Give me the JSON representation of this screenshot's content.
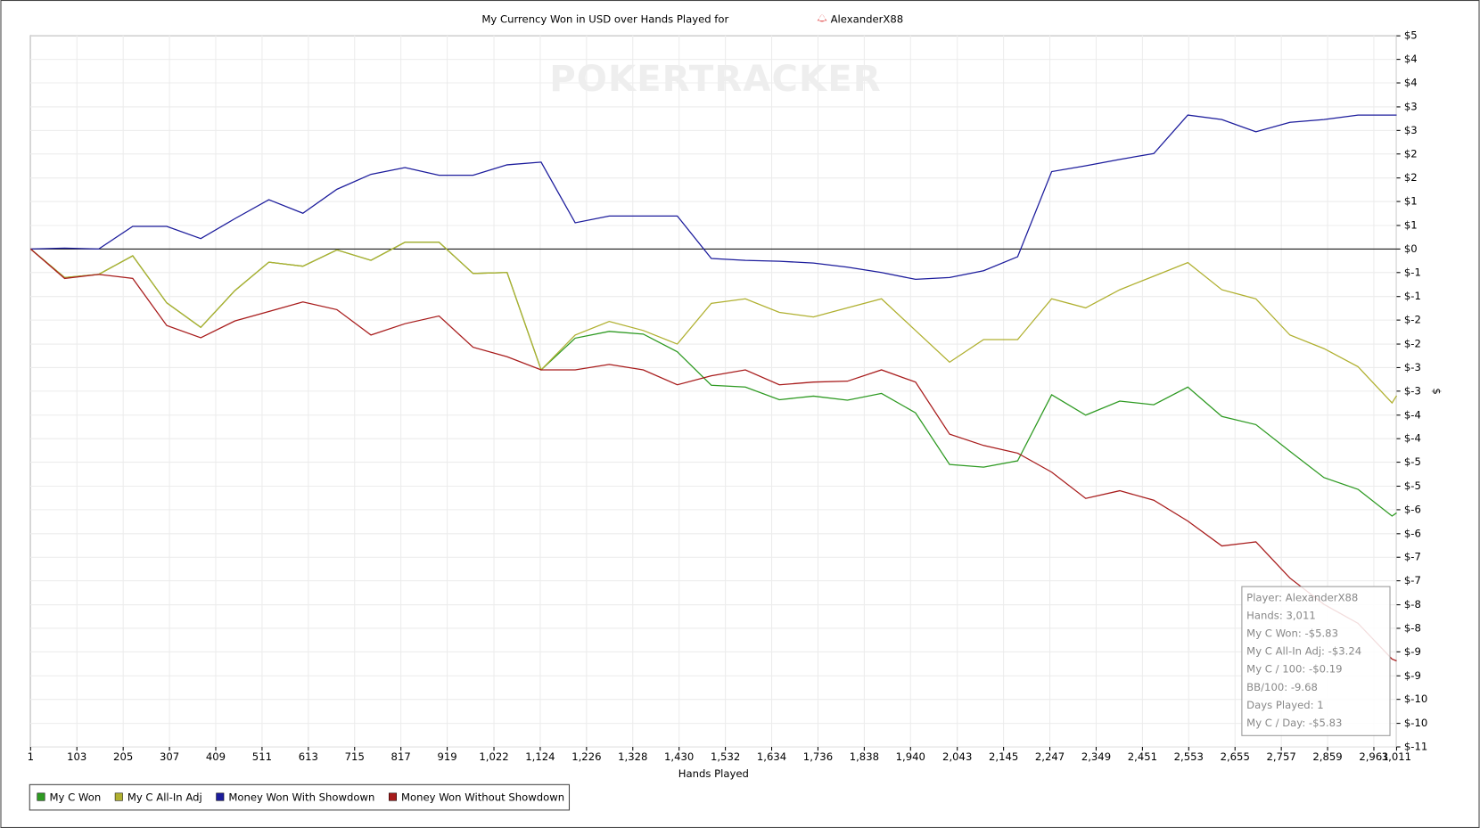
{
  "chart_data": {
    "type": "line",
    "title": "My Currency Won in USD over Hands Played for",
    "player": "AlexanderX88",
    "watermark": "POKERTRACKER",
    "x_label": "Hands Played",
    "y_label": "$",
    "grid": true,
    "legend": "bottom-left",
    "x": [
      1,
      76,
      151,
      226,
      301,
      376,
      451,
      526,
      601,
      676,
      751,
      826,
      901,
      976,
      1051,
      1126,
      1201,
      1276,
      1351,
      1426,
      1501,
      1576,
      1651,
      1726,
      1801,
      1876,
      1951,
      2026,
      2101,
      2176,
      2251,
      2326,
      2401,
      2476,
      2551,
      2626,
      2701,
      2776,
      2851,
      2926,
      3001,
      3011
    ],
    "series": [
      {
        "name": "My C Won",
        "color": "#2e9a22",
        "values": [
          0,
          -0.63,
          -0.56,
          -0.15,
          -1.19,
          -1.73,
          -0.92,
          -0.29,
          -0.38,
          -0.02,
          -0.25,
          0.15,
          0.15,
          -0.54,
          -0.52,
          -2.67,
          -1.97,
          -1.82,
          -1.88,
          -2.27,
          -3.01,
          -3.05,
          -3.33,
          -3.25,
          -3.34,
          -3.19,
          -3.62,
          -4.76,
          -4.82,
          -4.68,
          -3.22,
          -3.67,
          -3.36,
          -3.44,
          -3.05,
          -3.7,
          -3.88,
          -4.47,
          -5.05,
          -5.31,
          -5.9,
          -5.83
        ]
      },
      {
        "name": "My C All-In Adj",
        "color": "#b0b030",
        "values": [
          0,
          -0.63,
          -0.56,
          -0.15,
          -1.19,
          -1.73,
          -0.92,
          -0.29,
          -0.38,
          -0.02,
          -0.25,
          0.15,
          0.15,
          -0.54,
          -0.52,
          -2.67,
          -1.9,
          -1.6,
          -1.8,
          -2.1,
          -1.2,
          -1.1,
          -1.4,
          -1.5,
          -1.3,
          -1.1,
          -1.8,
          -2.5,
          -2.0,
          -2.0,
          -1.1,
          -1.3,
          -0.9,
          -0.6,
          -0.3,
          -0.9,
          -1.1,
          -1.9,
          -2.2,
          -2.6,
          -3.4,
          -3.24
        ]
      },
      {
        "name": "Money Won With Showdown",
        "color": "#1c1c9c",
        "values": [
          0,
          0.02,
          0,
          0.5,
          0.5,
          0.23,
          0.67,
          1.09,
          0.79,
          1.32,
          1.65,
          1.8,
          1.63,
          1.63,
          1.86,
          1.92,
          0.58,
          0.73,
          0.73,
          0.73,
          -0.21,
          -0.25,
          -0.27,
          -0.31,
          -0.4,
          -0.52,
          -0.67,
          -0.63,
          -0.48,
          -0.17,
          1.71,
          1.84,
          1.98,
          2.11,
          2.96,
          2.86,
          2.59,
          2.8,
          2.86,
          2.96,
          2.96,
          2.96
        ]
      },
      {
        "name": "Money Won Without Showdown",
        "color": "#a81c1c",
        "values": [
          0,
          -0.65,
          -0.56,
          -0.65,
          -1.69,
          -1.96,
          -1.59,
          -1.38,
          -1.17,
          -1.34,
          -1.9,
          -1.65,
          -1.48,
          -2.17,
          -2.38,
          -2.67,
          -2.67,
          -2.55,
          -2.67,
          -3.0,
          -2.8,
          -2.67,
          -3.0,
          -2.94,
          -2.92,
          -2.67,
          -2.94,
          -4.09,
          -4.34,
          -4.51,
          -4.93,
          -5.51,
          -5.34,
          -5.55,
          -6.01,
          -6.56,
          -6.47,
          -7.27,
          -7.85,
          -8.27,
          -9.06,
          -9.1
        ]
      }
    ],
    "xlim": [
      1,
      3011
    ],
    "xticks": [
      1,
      103,
      205,
      307,
      409,
      511,
      613,
      715,
      817,
      919,
      {
        "value": 1022,
        "label": "1,022"
      },
      {
        "value": 1124,
        "label": "1,124"
      },
      {
        "value": 1226,
        "label": "1,226"
      },
      {
        "value": 1328,
        "label": "1,328"
      },
      {
        "value": 1430,
        "label": "1,430"
      },
      {
        "value": 1532,
        "label": "1,532"
      },
      {
        "value": 1634,
        "label": "1,634"
      },
      {
        "value": 1736,
        "label": "1,736"
      },
      {
        "value": 1838,
        "label": "1,838"
      },
      {
        "value": 1940,
        "label": "1,940"
      },
      {
        "value": 2043,
        "label": "2,043"
      },
      {
        "value": 2145,
        "label": "2,145"
      },
      {
        "value": 2247,
        "label": "2,247"
      },
      {
        "value": 2349,
        "label": "2,349"
      },
      {
        "value": 2451,
        "label": "2,451"
      },
      {
        "value": 2553,
        "label": "2,553"
      },
      {
        "value": 2655,
        "label": "2,655"
      },
      {
        "value": 2757,
        "label": "2,757"
      },
      {
        "value": 2859,
        "label": "2,859"
      },
      {
        "value": 2961,
        "label": "2,961"
      },
      {
        "value": 3011,
        "label": "3,011"
      }
    ],
    "ylim": [
      -11,
      4.71
    ],
    "yticks": [
      {
        "value": 4.71,
        "label": "$5"
      },
      {
        "value": 4.19,
        "label": "$4"
      },
      {
        "value": 3.67,
        "label": "$4"
      },
      {
        "value": 3.14,
        "label": "$3"
      },
      {
        "value": 2.62,
        "label": "$3"
      },
      {
        "value": 2.1,
        "label": "$2"
      },
      {
        "value": 1.57,
        "label": "$2"
      },
      {
        "value": 1.05,
        "label": "$1"
      },
      {
        "value": 0.52,
        "label": "$1"
      },
      {
        "value": 0,
        "label": "$0"
      },
      {
        "value": -0.52,
        "label": "$-1"
      },
      {
        "value": -1.05,
        "label": "$-1"
      },
      {
        "value": -1.57,
        "label": "$-2"
      },
      {
        "value": -2.1,
        "label": "$-2"
      },
      {
        "value": -2.62,
        "label": "$-3"
      },
      {
        "value": -3.14,
        "label": "$-3"
      },
      {
        "value": -3.67,
        "label": "$-4"
      },
      {
        "value": -4.19,
        "label": "$-4"
      },
      {
        "value": -4.71,
        "label": "$-5"
      },
      {
        "value": -5.24,
        "label": "$-5"
      },
      {
        "value": -5.76,
        "label": "$-6"
      },
      {
        "value": -6.29,
        "label": "$-6"
      },
      {
        "value": -6.81,
        "label": "$-7"
      },
      {
        "value": -7.33,
        "label": "$-7"
      },
      {
        "value": -7.86,
        "label": "$-8"
      },
      {
        "value": -8.38,
        "label": "$-8"
      },
      {
        "value": -8.9,
        "label": "$-9"
      },
      {
        "value": -9.43,
        "label": "$-9"
      },
      {
        "value": -9.95,
        "label": "$-10"
      },
      {
        "value": -10.48,
        "label": "$-10"
      },
      {
        "value": -11,
        "label": "$-11"
      }
    ],
    "tooltip": [
      "Player: AlexanderX88",
      "Hands: 3,011",
      "My C Won: -$5.83",
      "My C All-In Adj: -$3.24",
      "My C / 100: -$0.19",
      "BB/100: -9.68",
      "Days Played: 1",
      "My C / Day: -$5.83"
    ]
  }
}
